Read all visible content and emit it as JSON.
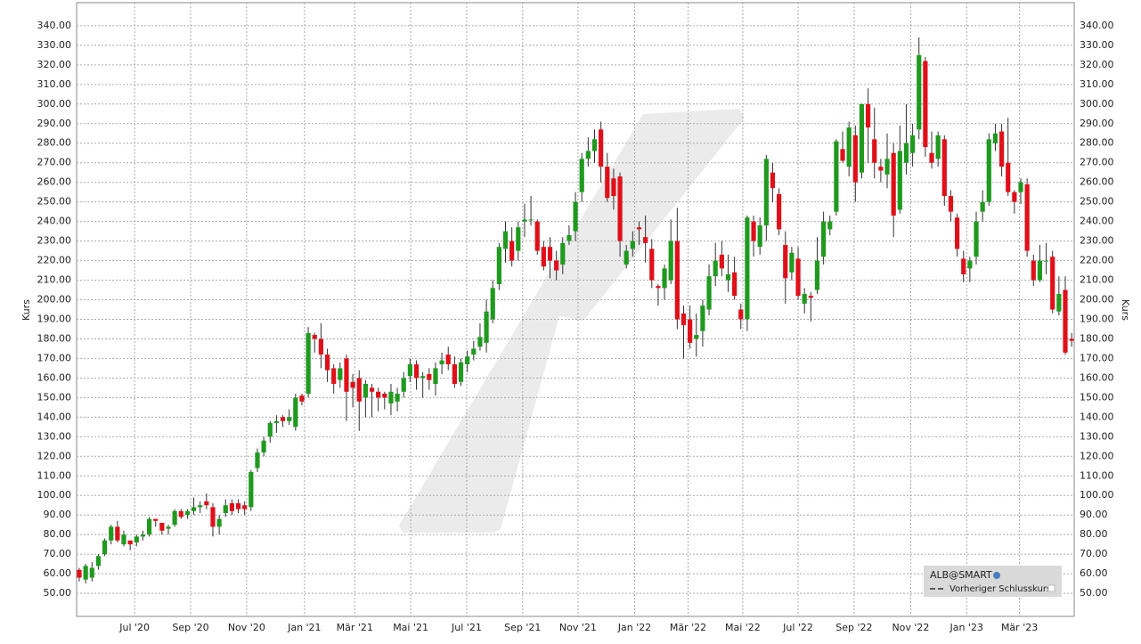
{
  "chart_data": {
    "type": "candlestick",
    "ylabel": "Kurs",
    "ylim": [
      38.2,
      351.8
    ],
    "xlim": [
      -0.42,
      156.4
    ],
    "grid": true,
    "yticks": [
      {
        "value": 50,
        "label": "50.00"
      },
      {
        "value": 60,
        "label": "60.00"
      },
      {
        "value": 70,
        "label": "70.00"
      },
      {
        "value": 80,
        "label": "80.00"
      },
      {
        "value": 90,
        "label": "90.00"
      },
      {
        "value": 100,
        "label": "100.00"
      },
      {
        "value": 110,
        "label": "110.00"
      },
      {
        "value": 120,
        "label": "120.00"
      },
      {
        "value": 130,
        "label": "130.00"
      },
      {
        "value": 140,
        "label": "140.00"
      },
      {
        "value": 150,
        "label": "150.00"
      },
      {
        "value": 160,
        "label": "160.00"
      },
      {
        "value": 170,
        "label": "170.00"
      },
      {
        "value": 180,
        "label": "180.00"
      },
      {
        "value": 190,
        "label": "190.00"
      },
      {
        "value": 200,
        "label": "200.00"
      },
      {
        "value": 210,
        "label": "210.00"
      },
      {
        "value": 220,
        "label": "220.00"
      },
      {
        "value": 230,
        "label": "230.00"
      },
      {
        "value": 240,
        "label": "240.00"
      },
      {
        "value": 250,
        "label": "250.00"
      },
      {
        "value": 260,
        "label": "260.00"
      },
      {
        "value": 270,
        "label": "270.00"
      },
      {
        "value": 280,
        "label": "280.00"
      },
      {
        "value": 290,
        "label": "290.00"
      },
      {
        "value": 300,
        "label": "300.00"
      },
      {
        "value": 310,
        "label": "310.00"
      },
      {
        "value": 320,
        "label": "320.00"
      },
      {
        "value": 330,
        "label": "330.00"
      },
      {
        "value": 340,
        "label": "340.00"
      }
    ],
    "xticks": [
      {
        "value": 8.7,
        "label": "Jul '20"
      },
      {
        "value": 17.5,
        "label": "Sep '20"
      },
      {
        "value": 26.3,
        "label": "Nov '20"
      },
      {
        "value": 35.4,
        "label": "Jan '21"
      },
      {
        "value": 43.3,
        "label": "Mär '21"
      },
      {
        "value": 52.1,
        "label": "Mai '21"
      },
      {
        "value": 60.9,
        "label": "Jul '21"
      },
      {
        "value": 69.7,
        "label": "Sep '21"
      },
      {
        "value": 78.4,
        "label": "Nov '21"
      },
      {
        "value": 87.3,
        "label": "Jan '22"
      },
      {
        "value": 95.7,
        "label": "Mär '22"
      },
      {
        "value": 104.3,
        "label": "Mai '22"
      },
      {
        "value": 113.0,
        "label": "Jul '22"
      },
      {
        "value": 121.8,
        "label": "Sep '22"
      },
      {
        "value": 130.7,
        "label": "Nov '22"
      },
      {
        "value": 139.5,
        "label": "Jan '23"
      },
      {
        "value": 147.8,
        "label": "Mär '23"
      }
    ],
    "reference_line": {
      "name": "Vorheriger Schlusskurs"
    },
    "series": [
      {
        "name": "ALB@SMART",
        "up_color": "#1f9a1f",
        "down_color": "#e0101a",
        "ohlc": [
          [
            62,
            63,
            56,
            58
          ],
          [
            57,
            65,
            55,
            64
          ],
          [
            58,
            66,
            56,
            63
          ],
          [
            64,
            70,
            62,
            69
          ],
          [
            70,
            78,
            69,
            77
          ],
          [
            77,
            85,
            75,
            84
          ],
          [
            84,
            87,
            76,
            77
          ],
          [
            75,
            82,
            74,
            80
          ],
          [
            77,
            77,
            72,
            75
          ],
          [
            76,
            80,
            74,
            79
          ],
          [
            79,
            82,
            77,
            80
          ],
          [
            80,
            89,
            79,
            88
          ],
          [
            88,
            88,
            84,
            87
          ],
          [
            86,
            86,
            80,
            82
          ],
          [
            83,
            85,
            80,
            84
          ],
          [
            85,
            93,
            84,
            92
          ],
          [
            92,
            93,
            88,
            89
          ],
          [
            90,
            93,
            88,
            92
          ],
          [
            92,
            99,
            90,
            94
          ],
          [
            94,
            97,
            91,
            95
          ],
          [
            97,
            101,
            93,
            95
          ],
          [
            94,
            96,
            79,
            84
          ],
          [
            84,
            90,
            80,
            88
          ],
          [
            91,
            98,
            89,
            95
          ],
          [
            96,
            98,
            90,
            92
          ],
          [
            96,
            98,
            91,
            93
          ],
          [
            95,
            97,
            90,
            93
          ],
          [
            94,
            113,
            92,
            112
          ],
          [
            114,
            124,
            112,
            122
          ],
          [
            122,
            130,
            120,
            128
          ],
          [
            130,
            138,
            127,
            137
          ],
          [
            137,
            141,
            132,
            138
          ],
          [
            140,
            141,
            135,
            138
          ],
          [
            138,
            144,
            136,
            140
          ],
          [
            135,
            152,
            133,
            150
          ],
          [
            151,
            152,
            146,
            148
          ],
          [
            152,
            186,
            150,
            183
          ],
          [
            182,
            183,
            173,
            180
          ],
          [
            180,
            188,
            165,
            172
          ],
          [
            172,
            175,
            158,
            164
          ],
          [
            165,
            167,
            152,
            157
          ],
          [
            159,
            168,
            155,
            165
          ],
          [
            170,
            172,
            138,
            153
          ],
          [
            158,
            162,
            145,
            155
          ],
          [
            160,
            164,
            133,
            148
          ],
          [
            150,
            159,
            140,
            157
          ],
          [
            155,
            157,
            140,
            153
          ],
          [
            153,
            155,
            143,
            150
          ],
          [
            152,
            153,
            144,
            150
          ],
          [
            147,
            157,
            141,
            153
          ],
          [
            148,
            155,
            143,
            152
          ],
          [
            153,
            163,
            150,
            160
          ],
          [
            161,
            170,
            158,
            167
          ],
          [
            167,
            169,
            154,
            160
          ],
          [
            160,
            163,
            150,
            161
          ],
          [
            162,
            165,
            154,
            159
          ],
          [
            157,
            168,
            151,
            165
          ],
          [
            167,
            173,
            162,
            169
          ],
          [
            172,
            176,
            164,
            167
          ],
          [
            167,
            171,
            155,
            157
          ],
          [
            158,
            170,
            156,
            168
          ],
          [
            167,
            174,
            163,
            171
          ],
          [
            172,
            179,
            169,
            175
          ],
          [
            176,
            188,
            174,
            181
          ],
          [
            178,
            200,
            173,
            194
          ],
          [
            190,
            210,
            188,
            206
          ],
          [
            208,
            229,
            205,
            227
          ],
          [
            226,
            240,
            219,
            235
          ],
          [
            230,
            237,
            217,
            220
          ],
          [
            225,
            240,
            220,
            237
          ],
          [
            240,
            249,
            232,
            241
          ],
          [
            241,
            253,
            238,
            241
          ],
          [
            240,
            241,
            223,
            225
          ],
          [
            227,
            230,
            215,
            217
          ],
          [
            227,
            232,
            211,
            220
          ],
          [
            220,
            225,
            210,
            215
          ],
          [
            218,
            232,
            213,
            229
          ],
          [
            230,
            238,
            228,
            233
          ],
          [
            235,
            255,
            230,
            250
          ],
          [
            255,
            275,
            250,
            272
          ],
          [
            272,
            283,
            268,
            276
          ],
          [
            276,
            287,
            270,
            282
          ],
          [
            287,
            291,
            260,
            268
          ],
          [
            268,
            275,
            250,
            252
          ],
          [
            262,
            267,
            246,
            253
          ],
          [
            263,
            265,
            222,
            230
          ],
          [
            218,
            228,
            216,
            225
          ],
          [
            226,
            235,
            222,
            230
          ],
          [
            237,
            240,
            228,
            236
          ],
          [
            232,
            243,
            219,
            229
          ],
          [
            226,
            231,
            206,
            210
          ],
          [
            207,
            208,
            197,
            206
          ],
          [
            206,
            218,
            200,
            216
          ],
          [
            210,
            241,
            208,
            230
          ],
          [
            230,
            247,
            185,
            190
          ],
          [
            193,
            197,
            170,
            187
          ],
          [
            190,
            197,
            175,
            178
          ],
          [
            180,
            193,
            171,
            182
          ],
          [
            184,
            200,
            176,
            197
          ],
          [
            195,
            218,
            192,
            212
          ],
          [
            212,
            229,
            207,
            220
          ],
          [
            223,
            230,
            212,
            216
          ],
          [
            210,
            223,
            204,
            213
          ],
          [
            214,
            222,
            200,
            202
          ],
          [
            195,
            198,
            185,
            190
          ],
          [
            190,
            243,
            184,
            242
          ],
          [
            240,
            243,
            222,
            230
          ],
          [
            227,
            242,
            223,
            238
          ],
          [
            238,
            274,
            230,
            272
          ],
          [
            265,
            270,
            250,
            257
          ],
          [
            254,
            257,
            233,
            236
          ],
          [
            228,
            235,
            198,
            211
          ],
          [
            214,
            227,
            210,
            224
          ],
          [
            221,
            227,
            200,
            202
          ],
          [
            198,
            206,
            193,
            203
          ],
          [
            202,
            204,
            189,
            201
          ],
          [
            205,
            232,
            203,
            220
          ],
          [
            222,
            245,
            218,
            240
          ],
          [
            236,
            243,
            233,
            240
          ],
          [
            245,
            282,
            243,
            281
          ],
          [
            277,
            286,
            270,
            271
          ],
          [
            268,
            291,
            263,
            288
          ],
          [
            284,
            289,
            250,
            260
          ],
          [
            265,
            300,
            262,
            300
          ],
          [
            300,
            308,
            270,
            288
          ],
          [
            282,
            298,
            262,
            270
          ],
          [
            268,
            272,
            260,
            266
          ],
          [
            264,
            285,
            257,
            272
          ],
          [
            275,
            280,
            232,
            243
          ],
          [
            246,
            289,
            244,
            276
          ],
          [
            270,
            300,
            264,
            280
          ],
          [
            275,
            290,
            268,
            284
          ],
          [
            287,
            334,
            282,
            325
          ],
          [
            322,
            324,
            273,
            278
          ],
          [
            275,
            286,
            267,
            270
          ],
          [
            272,
            286,
            268,
            284
          ],
          [
            282,
            284,
            248,
            253
          ],
          [
            253,
            256,
            240,
            245
          ],
          [
            242,
            244,
            222,
            226
          ],
          [
            221,
            225,
            209,
            213
          ],
          [
            216,
            222,
            209,
            220
          ],
          [
            222,
            245,
            218,
            240
          ],
          [
            245,
            256,
            240,
            250
          ],
          [
            250,
            285,
            248,
            282
          ],
          [
            280,
            290,
            276,
            285
          ],
          [
            286,
            290,
            263,
            268
          ],
          [
            270,
            293,
            253,
            255
          ],
          [
            255,
            256,
            244,
            250
          ],
          [
            255,
            262,
            249,
            260
          ],
          [
            259,
            262,
            222,
            225
          ],
          [
            220,
            223,
            207,
            210
          ],
          [
            210,
            228,
            209,
            220
          ],
          [
            220,
            229,
            213,
            220
          ],
          [
            222,
            225,
            193,
            195
          ],
          [
            194,
            212,
            192,
            203
          ],
          [
            205,
            212,
            172,
            173
          ],
          [
            180,
            183,
            176,
            179
          ]
        ]
      }
    ]
  }
}
